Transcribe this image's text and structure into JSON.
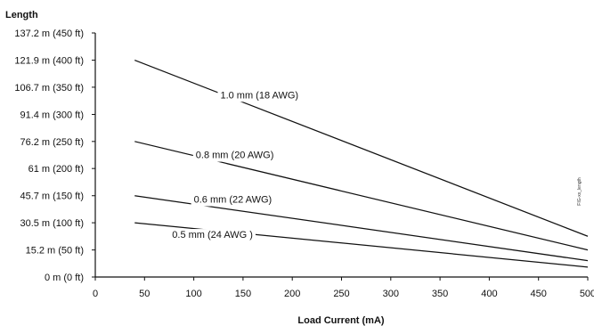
{
  "chart_data": {
    "type": "line",
    "title": "",
    "xlabel": "Load Current (mA)",
    "ylabel": "Length",
    "xlim": [
      0,
      500
    ],
    "ylim": [
      0,
      137.2
    ],
    "x_ticks": [
      0,
      50,
      100,
      150,
      200,
      250,
      300,
      350,
      400,
      450,
      500
    ],
    "y_ticks": [
      0,
      15.2,
      30.5,
      45.7,
      61,
      76.2,
      91.4,
      106.7,
      121.9,
      137.2
    ],
    "y_tick_labels": [
      "0 m (0 ft)",
      "15.2 m (50 ft)",
      "30.5 m (100 ft)",
      "45.7 m (150 ft)",
      "61 m (200 ft)",
      "76.2 m (250 ft)",
      "91.4 m (300 ft)",
      "106.7 m (350 ft)",
      "121.9 m (400 ft)",
      "137.2 m (450 ft)"
    ],
    "grid": false,
    "legend": "none",
    "figure_code": "FIG-xx_length",
    "series": [
      {
        "name": "1.0 mm  (18 AWG)",
        "x": [
          40,
          500
        ],
        "y": [
          121.9,
          22.9
        ],
        "label_position": {
          "x": 127,
          "y": 100.5
        }
      },
      {
        "name": "0.8 mm (20 AWG)",
        "x": [
          40,
          500
        ],
        "y": [
          76.2,
          15.2
        ],
        "label_position": {
          "x": 102,
          "y": 66.8
        }
      },
      {
        "name": "0.6 mm (22 AWG)",
        "x": [
          40,
          500
        ],
        "y": [
          45.7,
          9.2
        ],
        "label_position": {
          "x": 100,
          "y": 41.8
        }
      },
      {
        "name": "0.5 mm (24 AWG )",
        "x": [
          40,
          500
        ],
        "y": [
          30.5,
          5.6
        ],
        "label_position": {
          "x": 78,
          "y": 22.0
        }
      }
    ]
  }
}
